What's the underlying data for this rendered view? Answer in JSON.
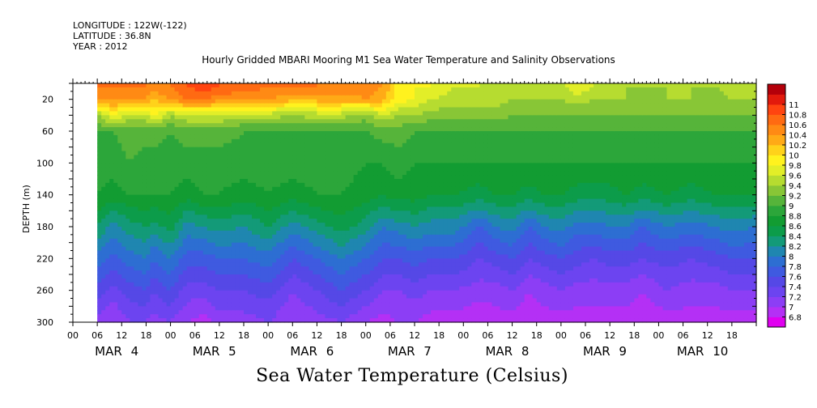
{
  "header": {
    "longitude": "LONGITUDE : 122W(-122)",
    "latitude": "LATITUDE : 36.8N",
    "year": "YEAR : 2012"
  },
  "chart_data": {
    "type": "heatmap",
    "title": "Hourly Gridded MBARI Mooring M1 Sea Water Temperature and Salinity Observations",
    "bottom_title": "Sea Water Temperature (Celsius)",
    "ylabel": "DEPTH (m)",
    "y_axis": {
      "range": [
        0,
        300
      ],
      "inverted": true,
      "ticks": [
        20,
        60,
        100,
        140,
        180,
        220,
        260,
        300
      ]
    },
    "x_axis": {
      "unit": "hours since MAR 4 00:00",
      "range": [
        0,
        168
      ],
      "hour_ticks": [
        "00",
        "06",
        "12",
        "18",
        "00",
        "06",
        "12",
        "18",
        "00",
        "06",
        "12",
        "18",
        "00",
        "06",
        "12",
        "18",
        "00",
        "06",
        "12",
        "18",
        "00",
        "06",
        "12",
        "18",
        "00",
        "06",
        "12",
        "18"
      ],
      "day_labels": [
        "MAR 4",
        "MAR 5",
        "MAR 6",
        "MAR 7",
        "MAR 8",
        "MAR 9",
        "MAR 10"
      ],
      "data_start_hour": 6
    },
    "colorbar": {
      "levels": [
        6.8,
        7,
        7.2,
        7.4,
        7.6,
        7.8,
        8,
        8.2,
        8.4,
        8.6,
        8.8,
        9,
        9.2,
        9.4,
        9.6,
        9.8,
        10,
        10.2,
        10.4,
        10.6,
        10.8,
        11
      ],
      "labels": [
        "6.8",
        "7",
        "7.2",
        "7.4",
        "7.6",
        "7.8",
        "8",
        "8.2",
        "8.4",
        "8.6",
        "8.8",
        "9",
        "9.2",
        "9.4",
        "9.6",
        "9.8",
        "10",
        "10.2",
        "10.4",
        "10.6",
        "10.8",
        "11"
      ],
      "colors": [
        "#e000f0",
        "#b430f5",
        "#8c3ef5",
        "#6c44f0",
        "#5548e6",
        "#3f5ae0",
        "#2d6ed2",
        "#1f86b0",
        "#139a78",
        "#0c9c4a",
        "#129c32",
        "#2ca63a",
        "#56b43a",
        "#88c636",
        "#b6dc30",
        "#e2ee28",
        "#fff21e",
        "#ffd21a",
        "#ffaa16",
        "#ff8a14",
        "#ff6a12",
        "#ff4410",
        "#e21a0c",
        "#b4000a"
      ]
    },
    "profile_depths": [
      5,
      20,
      40,
      60,
      100,
      140,
      180,
      220,
      260,
      300
    ],
    "profiles": [
      {
        "t": 6,
        "v": [
          10.6,
          10.4,
          9.4,
          9.0,
          8.9,
          8.8,
          8.4,
          7.9,
          7.5,
          7.1
        ]
      },
      {
        "t": 10,
        "v": [
          10.6,
          10.5,
          9.8,
          9.0,
          8.9,
          8.7,
          8.1,
          7.7,
          7.3,
          7.0
        ]
      },
      {
        "t": 14,
        "v": [
          10.6,
          10.4,
          9.5,
          9.1,
          9.0,
          8.8,
          8.3,
          7.9,
          7.5,
          7.2
        ]
      },
      {
        "t": 18,
        "v": [
          10.6,
          10.4,
          9.5,
          9.1,
          8.9,
          8.8,
          8.4,
          8.0,
          7.6,
          7.2
        ]
      },
      {
        "t": 20,
        "v": [
          10.5,
          10.2,
          9.9,
          9.1,
          8.9,
          8.8,
          8.3,
          7.8,
          7.4,
          7.1
        ]
      },
      {
        "t": 24,
        "v": [
          10.6,
          10.4,
          9.4,
          9.0,
          8.9,
          8.8,
          8.5,
          8.0,
          7.6,
          7.2
        ]
      },
      {
        "t": 28,
        "v": [
          10.8,
          10.6,
          9.6,
          9.1,
          8.9,
          8.7,
          8.1,
          7.7,
          7.3,
          7.0
        ]
      },
      {
        "t": 32,
        "v": [
          10.9,
          10.6,
          9.6,
          9.1,
          8.9,
          8.8,
          8.2,
          7.7,
          7.3,
          6.9
        ]
      },
      {
        "t": 36,
        "v": [
          10.8,
          10.5,
          9.6,
          9.1,
          8.9,
          8.8,
          8.3,
          7.8,
          7.4,
          7.1
        ]
      },
      {
        "t": 42,
        "v": [
          10.7,
          10.4,
          9.5,
          9.0,
          8.9,
          8.7,
          8.2,
          7.8,
          7.4,
          7.1
        ]
      },
      {
        "t": 48,
        "v": [
          10.6,
          10.4,
          9.5,
          9.0,
          8.9,
          8.8,
          8.4,
          7.9,
          7.5,
          7.2
        ]
      },
      {
        "t": 54,
        "v": [
          10.6,
          10.3,
          9.4,
          9.0,
          8.9,
          8.7,
          8.1,
          7.6,
          7.2,
          7.0
        ]
      },
      {
        "t": 60,
        "v": [
          10.6,
          10.3,
          9.5,
          9.0,
          8.9,
          8.8,
          8.3,
          7.8,
          7.4,
          7.1
        ]
      },
      {
        "t": 66,
        "v": [
          10.5,
          10.3,
          9.5,
          9.0,
          8.9,
          8.8,
          8.5,
          8.0,
          7.6,
          7.2
        ]
      },
      {
        "t": 72,
        "v": [
          10.5,
          10.4,
          9.3,
          9.0,
          8.8,
          8.7,
          8.3,
          7.8,
          7.4,
          7.0
        ]
      },
      {
        "t": 76,
        "v": [
          10.4,
          10.3,
          9.6,
          9.1,
          8.8,
          8.6,
          8.0,
          7.6,
          7.2,
          6.9
        ]
      },
      {
        "t": 80,
        "v": [
          9.9,
          9.9,
          9.4,
          9.1,
          8.9,
          8.7,
          8.1,
          7.6,
          7.2,
          7.0
        ]
      },
      {
        "t": 84,
        "v": [
          9.8,
          9.8,
          9.4,
          9.0,
          8.8,
          8.7,
          8.2,
          7.7,
          7.3,
          7.0
        ]
      },
      {
        "t": 88,
        "v": [
          9.8,
          9.6,
          9.3,
          9.0,
          8.8,
          8.6,
          8.1,
          7.6,
          7.2,
          6.9
        ]
      },
      {
        "t": 94,
        "v": [
          9.6,
          9.5,
          9.3,
          9.0,
          8.8,
          8.6,
          8.1,
          7.6,
          7.2,
          6.9
        ]
      },
      {
        "t": 100,
        "v": [
          9.6,
          9.5,
          9.3,
          9.0,
          8.8,
          8.5,
          7.8,
          7.4,
          7.1,
          6.8
        ]
      },
      {
        "t": 104,
        "v": [
          9.5,
          9.5,
          9.3,
          9.0,
          8.8,
          8.6,
          8.0,
          7.5,
          7.1,
          6.9
        ]
      },
      {
        "t": 108,
        "v": [
          9.5,
          9.4,
          9.2,
          9.0,
          8.8,
          8.6,
          8.1,
          7.6,
          7.2,
          6.9
        ]
      },
      {
        "t": 112,
        "v": [
          9.4,
          9.4,
          9.2,
          9.0,
          8.8,
          8.5,
          7.8,
          7.4,
          7.0,
          6.8
        ]
      },
      {
        "t": 116,
        "v": [
          9.5,
          9.4,
          9.2,
          9.0,
          8.8,
          8.6,
          8.0,
          7.5,
          7.1,
          6.9
        ]
      },
      {
        "t": 120,
        "v": [
          9.5,
          9.4,
          9.2,
          9.0,
          8.8,
          8.6,
          8.1,
          7.6,
          7.2,
          6.9
        ]
      },
      {
        "t": 124,
        "v": [
          9.8,
          9.5,
          9.2,
          9.0,
          8.8,
          8.5,
          7.9,
          7.5,
          7.1,
          6.9
        ]
      },
      {
        "t": 128,
        "v": [
          9.6,
          9.4,
          9.2,
          9.0,
          8.8,
          8.5,
          7.9,
          7.4,
          7.1,
          6.9
        ]
      },
      {
        "t": 132,
        "v": [
          9.5,
          9.4,
          9.2,
          9.0,
          8.8,
          8.5,
          8.0,
          7.5,
          7.1,
          6.9
        ]
      },
      {
        "t": 136,
        "v": [
          9.4,
          9.4,
          9.2,
          9.0,
          8.8,
          8.6,
          8.0,
          7.5,
          7.1,
          6.9
        ]
      },
      {
        "t": 140,
        "v": [
          9.4,
          9.3,
          9.2,
          9.0,
          8.8,
          8.5,
          7.8,
          7.4,
          7.0,
          6.8
        ]
      },
      {
        "t": 146,
        "v": [
          9.4,
          9.4,
          9.2,
          9.0,
          8.8,
          8.6,
          8.0,
          7.5,
          7.2,
          6.9
        ]
      },
      {
        "t": 152,
        "v": [
          9.4,
          9.4,
          9.2,
          9.0,
          8.8,
          8.5,
          7.9,
          7.4,
          7.1,
          6.9
        ]
      },
      {
        "t": 158,
        "v": [
          9.4,
          9.3,
          9.2,
          9.0,
          8.8,
          8.6,
          8.0,
          7.5,
          7.1,
          6.9
        ]
      },
      {
        "t": 162,
        "v": [
          9.5,
          9.4,
          9.2,
          9.0,
          8.8,
          8.6,
          8.1,
          7.6,
          7.2,
          6.9
        ]
      },
      {
        "t": 168,
        "v": [
          9.4,
          9.4,
          9.2,
          9.0,
          8.8,
          8.6,
          8.0,
          7.6,
          7.2,
          6.9
        ]
      }
    ]
  }
}
